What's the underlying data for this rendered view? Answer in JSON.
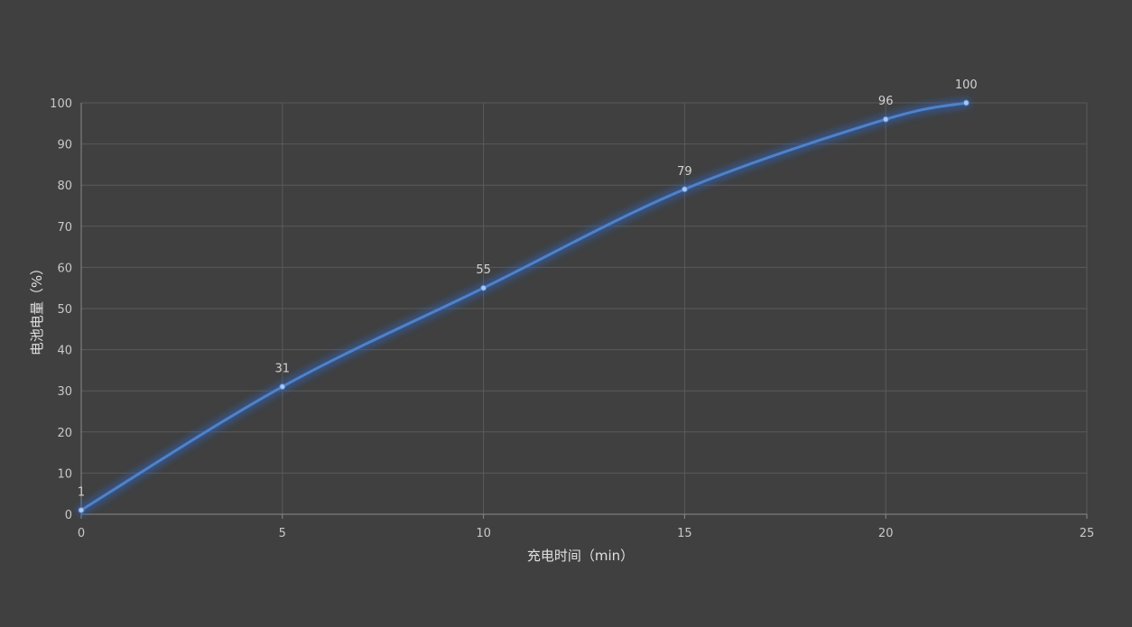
{
  "chart_data": {
    "type": "line",
    "title": "",
    "xlabel": "充电时间（min）",
    "ylabel": "电池电量（%）",
    "x": [
      0,
      5,
      10,
      15,
      20,
      22
    ],
    "series": [
      {
        "values": [
          1,
          31,
          55,
          79,
          96,
          100
        ]
      }
    ],
    "data_labels": [
      "1",
      "31",
      "55",
      "79",
      "96",
      "100"
    ],
    "xlim": [
      0,
      25
    ],
    "ylim": [
      0,
      100
    ],
    "x_ticks": [
      0,
      5,
      10,
      15,
      20,
      25
    ],
    "y_ticks": [
      0,
      10,
      20,
      30,
      40,
      50,
      60,
      70,
      80,
      90,
      100
    ],
    "grid": true,
    "smooth": true,
    "colors": {
      "background": "#404040",
      "line": "#4f82c8",
      "glow": "#2f62c0"
    }
  }
}
